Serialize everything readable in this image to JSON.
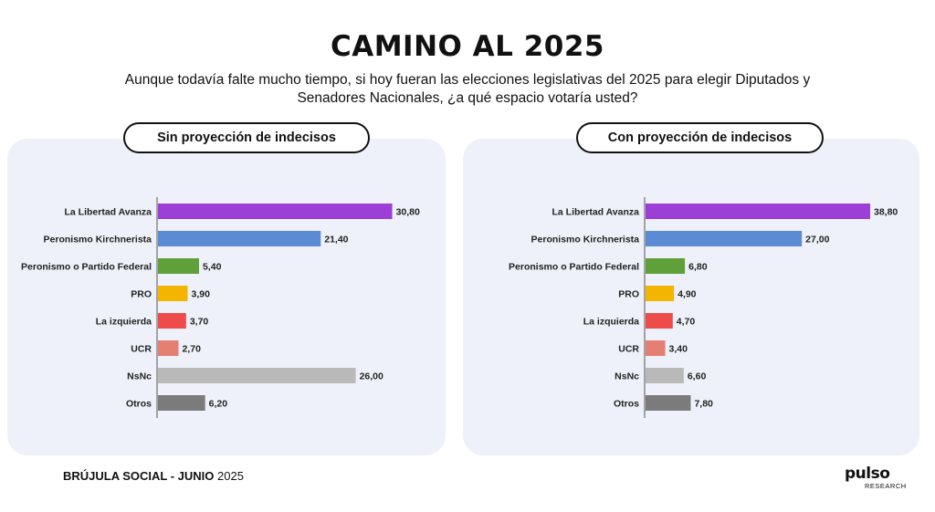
{
  "header": {
    "title": "CAMINO AL 2025",
    "subtitle": "Aunque todavía falte mucho tiempo, si hoy fueran las elecciones legislativas del 2025 para elegir Diputados y Senadores Nacionales, ¿a qué espacio votaría usted?"
  },
  "footer": {
    "label_bold": "BRÚJULA SOCIAL - JUNIO",
    "label_year": "2025"
  },
  "logo": {
    "brand": "pulso",
    "sub": "RESEARCH"
  },
  "chart_data": [
    {
      "type": "bar",
      "orientation": "horizontal",
      "title": "Sin proyección de indecisos",
      "categories": [
        "La Libertad Avanza",
        "Peronismo Kirchnerista",
        "Peronismo o Partido Federal",
        "PRO",
        "La izquierda",
        "UCR",
        "NsNc",
        "Otros"
      ],
      "values": [
        30.8,
        21.4,
        5.4,
        3.9,
        3.7,
        2.7,
        26.0,
        6.2
      ],
      "value_labels": [
        "30,80",
        "21,40",
        "5,40",
        "3,90",
        "3,70",
        "2,70",
        "26,00",
        "6,20"
      ],
      "colors": [
        "#9b3fd6",
        "#5b8bd3",
        "#5fa03a",
        "#f3b500",
        "#ee4b4b",
        "#e57e73",
        "#b9b9b9",
        "#7b7b7b"
      ]
    },
    {
      "type": "bar",
      "orientation": "horizontal",
      "title": "Con proyección de indecisos",
      "categories": [
        "La Libertad Avanza",
        "Peronismo Kirchnerista",
        "Peronismo o Partido Federal",
        "PRO",
        "La izquierda",
        "UCR",
        "NsNc",
        "Otros"
      ],
      "values": [
        38.8,
        27.0,
        6.8,
        4.9,
        4.7,
        3.4,
        6.6,
        7.8
      ],
      "value_labels": [
        "38,80",
        "27,00",
        "6,80",
        "4,90",
        "4,70",
        "3,40",
        "6,60",
        "7,80"
      ],
      "colors": [
        "#9b3fd6",
        "#5b8bd3",
        "#5fa03a",
        "#f3b500",
        "#ee4b4b",
        "#e57e73",
        "#b9b9b9",
        "#7b7b7b"
      ]
    }
  ]
}
